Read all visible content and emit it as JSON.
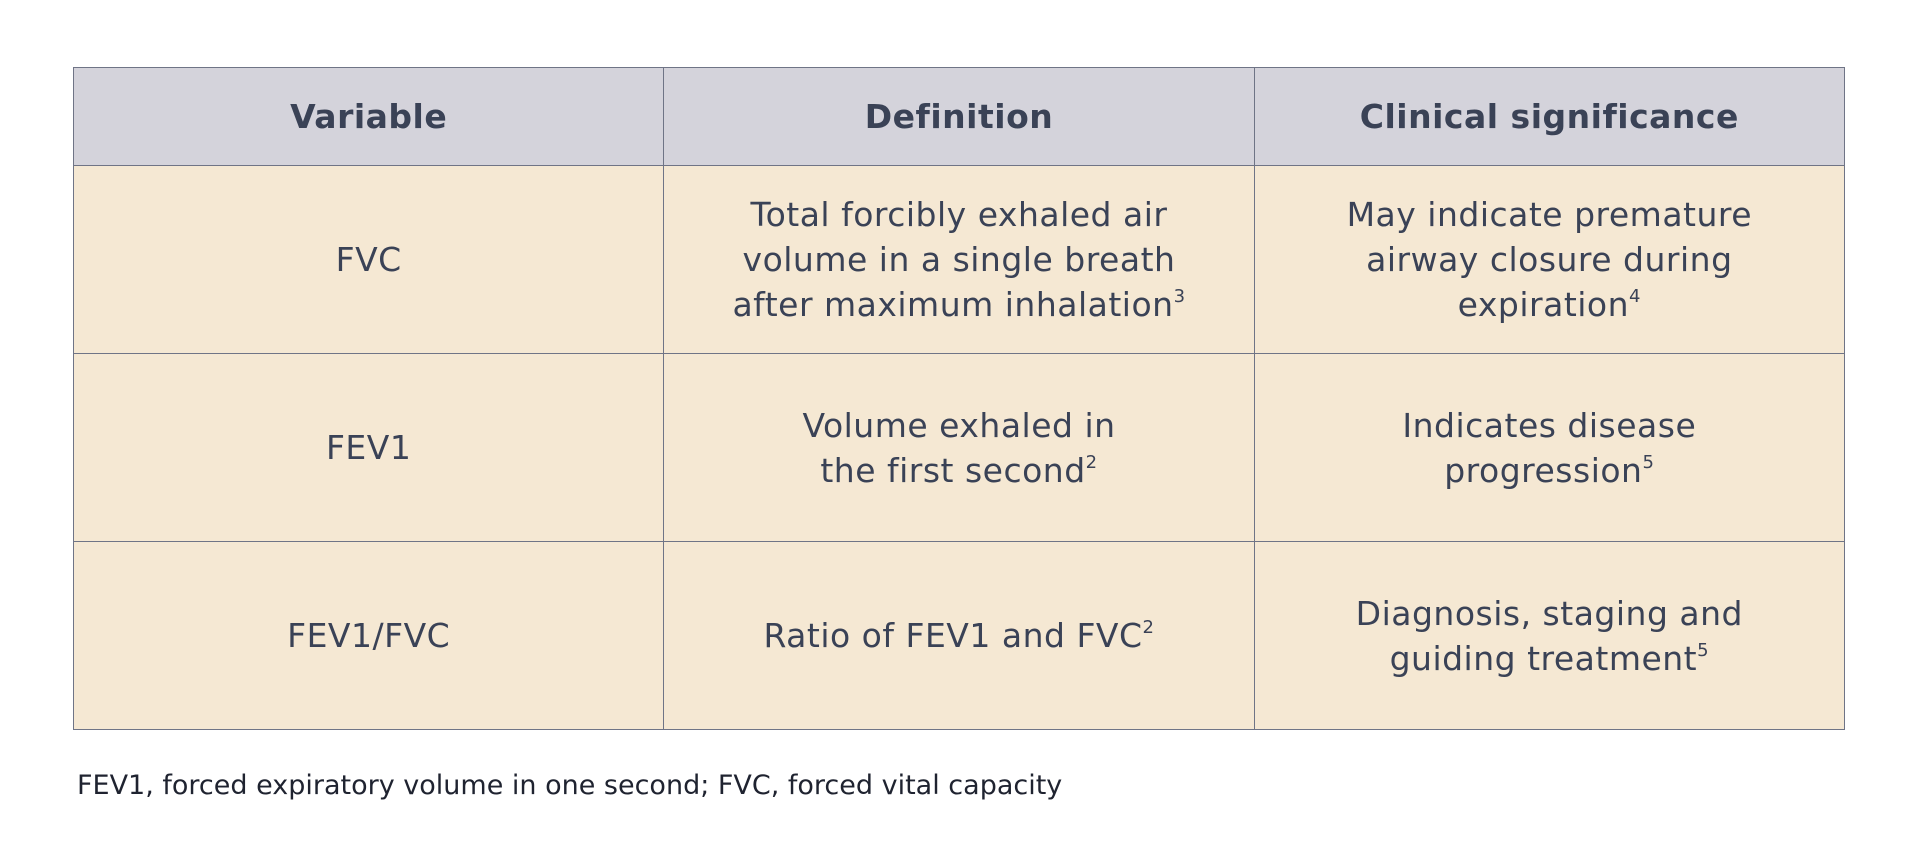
{
  "table": {
    "header": [
      "Variable",
      "Definition",
      "Clinical significance"
    ],
    "rows": [
      [
        {
          "lines": [
            "FVC"
          ]
        },
        {
          "lines": [
            "Total forcibly exhaled air",
            "volume in a single breath",
            "after maximum inhalation"
          ],
          "ref": "3"
        },
        {
          "lines": [
            "May indicate premature",
            "airway closure during",
            "expiration"
          ],
          "ref": "4"
        }
      ],
      [
        {
          "lines": [
            "FEV1"
          ]
        },
        {
          "lines": [
            "Volume exhaled in",
            "the first second"
          ],
          "ref": "2"
        },
        {
          "lines": [
            "Indicates disease",
            "progression"
          ],
          "ref": "5"
        }
      ],
      [
        {
          "lines": [
            "FEV1/FVC"
          ]
        },
        {
          "lines": [
            "Ratio of FEV1 and FVC"
          ],
          "ref": "2"
        },
        {
          "lines": [
            "Diagnosis, staging and",
            "guiding treatment"
          ],
          "ref": "5"
        }
      ]
    ]
  },
  "footnote": "FEV1, forced expiratory volume in one second; FVC, forced vital capacity"
}
